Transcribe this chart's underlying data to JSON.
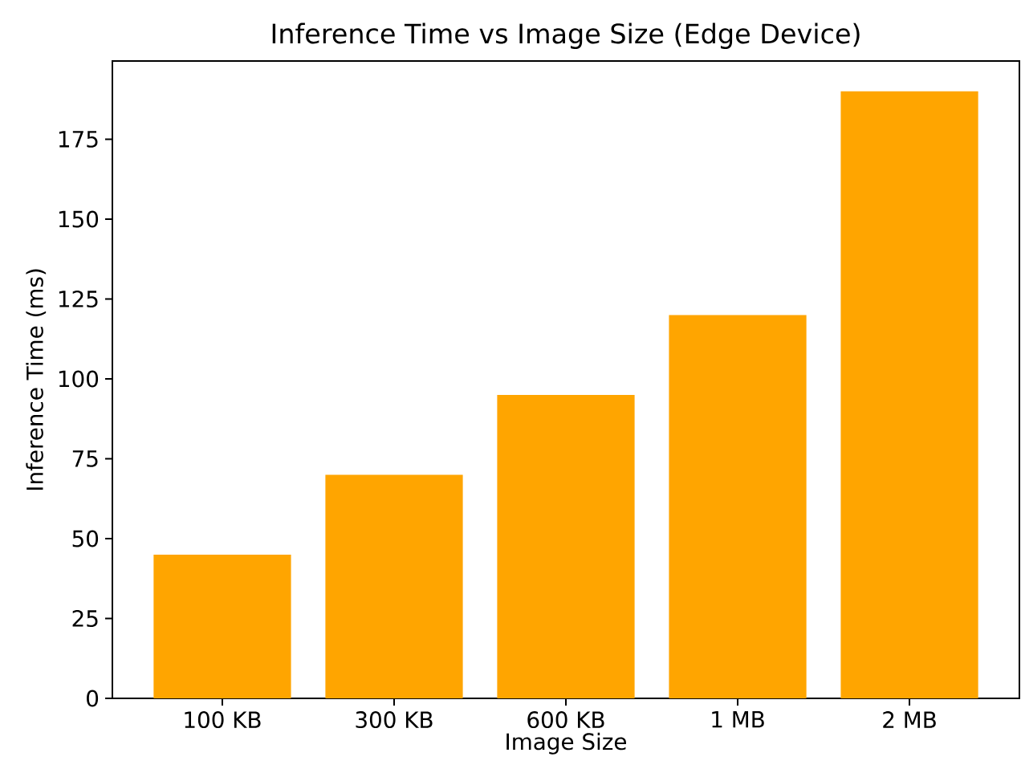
{
  "chart_data": {
    "type": "bar",
    "title": "Inference Time vs Image Size (Edge Device)",
    "xlabel": "Image Size",
    "ylabel": "Inference Time (ms)",
    "categories": [
      "100 KB",
      "300 KB",
      "600 KB",
      "1 MB",
      "2 MB"
    ],
    "values": [
      45,
      70,
      95,
      120,
      190
    ],
    "color": "#ffa500",
    "ylim": [
      0,
      199.5
    ],
    "yticks": [
      0,
      25,
      50,
      75,
      100,
      125,
      150,
      175
    ]
  }
}
